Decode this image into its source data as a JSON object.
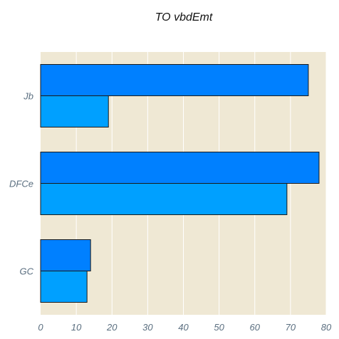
{
  "chart_data": {
    "type": "bar",
    "orientation": "horizontal",
    "title": "TO vbdEmt",
    "xlabel": "",
    "ylabel": "",
    "categories": [
      "Jb",
      "DFCe",
      "GC"
    ],
    "series": [
      {
        "values": [
          75,
          78,
          14
        ],
        "color": "#0080ff"
      },
      {
        "values": [
          19,
          69,
          13
        ],
        "color": "#00a0ff"
      }
    ],
    "xlim": [
      0,
      80
    ],
    "xticks": [
      0,
      10,
      20,
      30,
      40,
      50,
      60,
      70,
      80
    ],
    "grid": true,
    "legend": "none",
    "colors": {
      "plot_background": "#efe8d4",
      "grid": "#ffffff",
      "bar_outline": "#1a1a1a",
      "tick_text": "#5b6f80"
    }
  }
}
